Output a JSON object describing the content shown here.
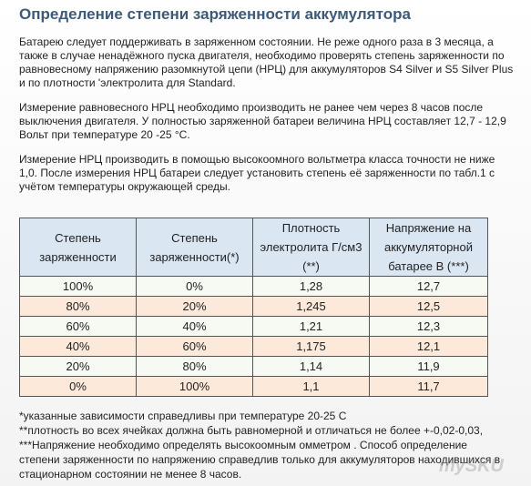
{
  "title": "Определение степени заряженности аккумулятора",
  "paragraphs": [
    [
      "Батарею следует поддерживать в заряженном состоянии. Не реже одного раза в 3 месяца, а",
      "также в случае ненадёжного пуска двигателя, необходимо проверять степень заряженности по",
      "равновесному напряжению разомкнутой цепи (НРЦ) для аккумуляторов S4 Silver и S5 Silver Plus",
      "и по плотности 'электролита для Standard."
    ],
    [
      "Измерение равновесного НРЦ необходимо производить не ранее чем через 8 часов после",
      "выключения двигателя. У полностью заряженной батареи величина НРЦ составляет 12,7 - 12,9",
      "Вольт при температуре 20 -25 °С."
    ],
    [
      "Измерение НРЦ производить в помощью высокоомного вольтметра класса точности не ниже",
      "1,0. После измерения НРЦ батареи следует установить степень её заряженности по табл.1 с",
      "учётом температуры окружающей среды."
    ]
  ],
  "table": {
    "header": [
      "Степень заряженности",
      "Степень заряженности(*)",
      "Плотность электролита Г/см3 (**)",
      "Напряжение на аккумуляторной батарее В (***)"
    ],
    "rows": [
      [
        "100%",
        "0%",
        "1,28",
        "12,7"
      ],
      [
        "80%",
        "20%",
        "1,245",
        "12,5"
      ],
      [
        "60%",
        "40%",
        "1,21",
        "12,3"
      ],
      [
        "40%",
        "60%",
        "1,175",
        "12,1"
      ],
      [
        "20%",
        "80%",
        "1,14",
        "11,9"
      ],
      [
        "0%",
        "100%",
        "1,1",
        "11,7"
      ]
    ]
  },
  "notes": [
    " *указанные зависимости справедливы при температуре 20-25 С",
    "**плотность во всех ячейках должна быть равномерной и отличаться не более +-0,02-0,03,",
    "***Напряжение необходимо определять высокоомным омметром . Способ определение",
    "степени заряженности по напряжению справедлив только для аккумуляторов находившихся в",
    "стационарном состоянии не менее 8 часов."
  ],
  "watermark": "mySKU"
}
